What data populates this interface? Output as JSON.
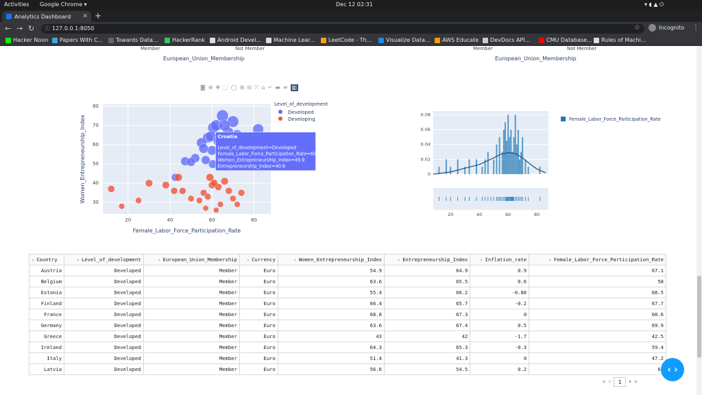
{
  "os": {
    "activities": "Activities",
    "app_name": "Google Chrome ▾",
    "clock": "Dec 12  02:31"
  },
  "browser": {
    "tab_title": "Analytics Dashboard",
    "url": "127.0.0.1:8050",
    "incognito_label": "Incognito",
    "bookmarks": [
      {
        "label": "Hacker Noon",
        "color": "#00ff00"
      },
      {
        "label": "Papers With C...",
        "color": "#4aa3df"
      },
      {
        "label": "Towards Data...",
        "color": "#666666"
      },
      {
        "label": "HackerRank",
        "color": "#2ec866"
      },
      {
        "label": "Android Devel...",
        "color": "#dddddd"
      },
      {
        "label": "Machine Lear...",
        "color": "#dddddd"
      },
      {
        "label": "LeetCode - Th...",
        "color": "#f89f1b"
      },
      {
        "label": "Visualize Data...",
        "color": "#1e88e5"
      },
      {
        "label": "AWS Educate",
        "color": "#ff9900"
      },
      {
        "label": "DevDocs API...",
        "color": "#cccccc"
      },
      {
        "label": "CMU Database...",
        "color": "#ff0000"
      },
      {
        "label": "Rules of Machi...",
        "color": "#dddddd"
      }
    ]
  },
  "top_charts": {
    "left": {
      "ticks": [
        "Member",
        "Not Member"
      ],
      "title": "European_Union_Membership"
    },
    "right": {
      "ticks": [
        "Member",
        "Not Member"
      ],
      "title": "European_Union_Membership"
    }
  },
  "scatter": {
    "xlabel": "Female_Labor_Force_Participation_Rate",
    "ylabel": "Women_Entrepreneurship_Index",
    "legend_title": "Level_of_development",
    "legend": [
      "Developed",
      "Developing"
    ],
    "tooltip": {
      "title": "Croatia",
      "lines": [
        "Level_of_development=Developed",
        "Female_Labor_Force_Participation_Rate=60.4",
        "Women_Entrepreneurship_Index=49.9",
        "Entrepreneurship_Index=40.6"
      ]
    }
  },
  "chart_data": [
    {
      "type": "scatter",
      "xlabel": "Female_Labor_Force_Participation_Rate",
      "ylabel": "Women_Entrepreneurship_Index",
      "xticks": [
        20,
        40,
        60,
        80
      ],
      "yticks": [
        30,
        40,
        50,
        60,
        70,
        80
      ],
      "xlim": [
        8,
        88
      ],
      "ylim": [
        24,
        81
      ],
      "legend_title": "Level_of_development",
      "legend_placement": "top-right",
      "series": [
        {
          "name": "Developed",
          "color": "#636efa",
          "points": [
            [
              67.1,
              54.9
            ],
            [
              58,
              63.6
            ],
            [
              68.5,
              55.4
            ],
            [
              67.7,
              66.4
            ],
            [
              60.6,
              68.8
            ],
            [
              69.9,
              63.6
            ],
            [
              42.5,
              43
            ],
            [
              59.4,
              64.3
            ],
            [
              47.2,
              51.4
            ],
            [
              66.3,
              56.6
            ],
            [
              60.4,
              49.9
            ],
            [
              65,
              75
            ],
            [
              70,
              72
            ],
            [
              82,
              68
            ],
            [
              62,
              70
            ],
            [
              55,
              61
            ],
            [
              52,
              53
            ],
            [
              60,
              57
            ],
            [
              72,
              65
            ],
            [
              66,
              70
            ],
            [
              57,
              52
            ],
            [
              63,
              62
            ],
            [
              50,
              51
            ],
            [
              56,
              58
            ]
          ]
        },
        {
          "name": "Developing",
          "color": "#ef553b",
          "points": [
            [
              12,
              37
            ],
            [
              17,
              28
            ],
            [
              25,
              31
            ],
            [
              30,
              40
            ],
            [
              38,
              39
            ],
            [
              42,
              36
            ],
            [
              46,
              36
            ],
            [
              50,
              32
            ],
            [
              54,
              31
            ],
            [
              56,
              35
            ],
            [
              58,
              33
            ],
            [
              60,
              39
            ],
            [
              62,
              26
            ],
            [
              64,
              29
            ],
            [
              66,
              41
            ],
            [
              68,
              36
            ],
            [
              70,
              32
            ],
            [
              72,
              29
            ],
            [
              74,
              35
            ],
            [
              57,
              27
            ],
            [
              63,
              38
            ],
            [
              61,
              40
            ],
            [
              59,
              43
            ],
            [
              44,
              43
            ]
          ]
        }
      ]
    },
    {
      "type": "bar",
      "legend": [
        "Female_Labor_Force_Participation_Rate"
      ],
      "legend_placement": "top-right",
      "xticks": [
        20,
        40,
        60,
        80
      ],
      "yticks": [
        0,
        0.02,
        0.04,
        0.06,
        0.08
      ],
      "xlim": [
        8,
        88
      ],
      "ylim": [
        0,
        0.085
      ],
      "x": [
        12,
        17,
        20,
        25,
        30,
        33,
        38,
        42,
        44,
        46,
        50,
        52,
        54,
        56,
        57,
        58,
        59,
        60,
        61,
        62,
        63,
        64,
        65,
        66,
        67,
        68,
        69,
        70,
        72,
        74,
        82
      ],
      "values": [
        0.01,
        0.02,
        0.01,
        0.02,
        0.01,
        0.02,
        0.02,
        0.01,
        0.02,
        0.03,
        0.02,
        0.04,
        0.05,
        0.03,
        0.06,
        0.07,
        0.045,
        0.08,
        0.05,
        0.06,
        0.03,
        0.05,
        0.08,
        0.04,
        0.06,
        0.02,
        0.03,
        0.05,
        0.02,
        0.01,
        0.01
      ],
      "kde_x": [
        8,
        20,
        30,
        40,
        50,
        55,
        60,
        65,
        70,
        75,
        80,
        86
      ],
      "kde_y": [
        0.0,
        0.003,
        0.008,
        0.013,
        0.022,
        0.027,
        0.029,
        0.028,
        0.022,
        0.014,
        0.007,
        0.002
      ],
      "rug": [
        12,
        17,
        20,
        25,
        30,
        33,
        38,
        42,
        44,
        46,
        48,
        50,
        52,
        53,
        54,
        55,
        56,
        57,
        58,
        58.5,
        59,
        59.5,
        60,
        60.4,
        61,
        61.5,
        62,
        62.5,
        63,
        63.5,
        64,
        65,
        66,
        67,
        68,
        69,
        70,
        72,
        74,
        82
      ]
    }
  ],
  "table": {
    "columns": [
      "Country",
      "Level_of_development",
      "European_Union_Membership",
      "Currency",
      "Women_Entrepreneurship_Index",
      "Entrepreneurship_Index",
      "Inflation_rate",
      "Female_Labor_Force_Participation_Rate"
    ],
    "rows": [
      [
        "Austria",
        "Developed",
        "Member",
        "Euro",
        "54.9",
        "64.9",
        "0.9",
        "67.1"
      ],
      [
        "Belgium",
        "Developed",
        "Member",
        "Euro",
        "63.6",
        "65.5",
        "0.6",
        "58"
      ],
      [
        "Estonia",
        "Developed",
        "Member",
        "Euro",
        "55.4",
        "60.2",
        "-0.88",
        "68.5"
      ],
      [
        "Finland",
        "Developed",
        "Member",
        "Euro",
        "66.4",
        "65.7",
        "-0.2",
        "67.7"
      ],
      [
        "France",
        "Developed",
        "Member",
        "Euro",
        "68.8",
        "67.3",
        "0",
        "60.6"
      ],
      [
        "Germany",
        "Developed",
        "Member",
        "Euro",
        "63.6",
        "67.4",
        "0.5",
        "69.9"
      ],
      [
        "Greece",
        "Developed",
        "Member",
        "Euro",
        "43",
        "42",
        "-1.7",
        "42.5"
      ],
      [
        "Ireland",
        "Developed",
        "Member",
        "Euro",
        "64.3",
        "65.3",
        "-0.3",
        "59.4"
      ],
      [
        "Italy",
        "Developed",
        "Member",
        "Euro",
        "51.4",
        "41.3",
        "0",
        "47.2"
      ],
      [
        "Latvia",
        "Developed",
        "Member",
        "Euro",
        "56.6",
        "54.5",
        "0.2",
        "66"
      ]
    ]
  },
  "pager": {
    "first": "«",
    "prev": "‹",
    "page": "1",
    "next": "›",
    "last": "»"
  }
}
